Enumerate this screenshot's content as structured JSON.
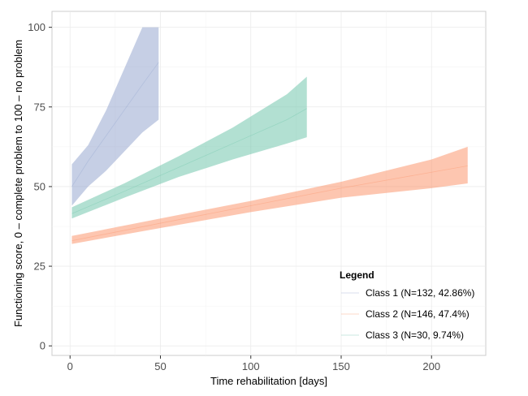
{
  "chart_data": {
    "type": "area",
    "xlabel": "Time rehabilitation [days]",
    "ylabel": "Functioning score, 0 – complete problem to 100 – no problem",
    "xlim": [
      -10,
      230
    ],
    "ylim": [
      -3,
      105
    ],
    "x_ticks": [
      0,
      50,
      100,
      150,
      200
    ],
    "y_ticks": [
      0,
      25,
      50,
      75,
      100
    ],
    "grid": true,
    "legend": {
      "title": "Legend",
      "position": "bottom-right"
    },
    "series": [
      {
        "name": "Class 1 (N=132, 42.86%)",
        "color": "#8da0cb",
        "x": [
          1,
          10,
          20,
          30,
          40,
          49
        ],
        "mean": [
          50,
          58,
          66,
          74,
          82,
          89
        ],
        "lower": [
          44,
          50,
          55,
          61,
          67,
          71
        ],
        "upper": [
          57,
          63,
          74,
          87,
          100,
          100
        ]
      },
      {
        "name": "Class 2 (N=146, 47.4%)",
        "color": "#fc8d62",
        "x": [
          1,
          50,
          100,
          150,
          200,
          220
        ],
        "mean": [
          33,
          38.5,
          44,
          49.5,
          54.5,
          56.5
        ],
        "lower": [
          32,
          37,
          42,
          46.5,
          49.5,
          51
        ],
        "upper": [
          34.5,
          40,
          45.5,
          51.5,
          58.5,
          62.5
        ]
      },
      {
        "name": "Class 3 (N=30, 9.74%)",
        "color": "#66c2a5",
        "x": [
          1,
          30,
          60,
          90,
          120,
          131
        ],
        "mean": [
          41.5,
          48.5,
          56,
          63.5,
          71,
          74.5
        ],
        "lower": [
          40,
          46.5,
          53,
          58.5,
          63.5,
          65.5
        ],
        "upper": [
          43.5,
          51,
          59.5,
          68.5,
          79,
          84.5
        ]
      }
    ]
  }
}
